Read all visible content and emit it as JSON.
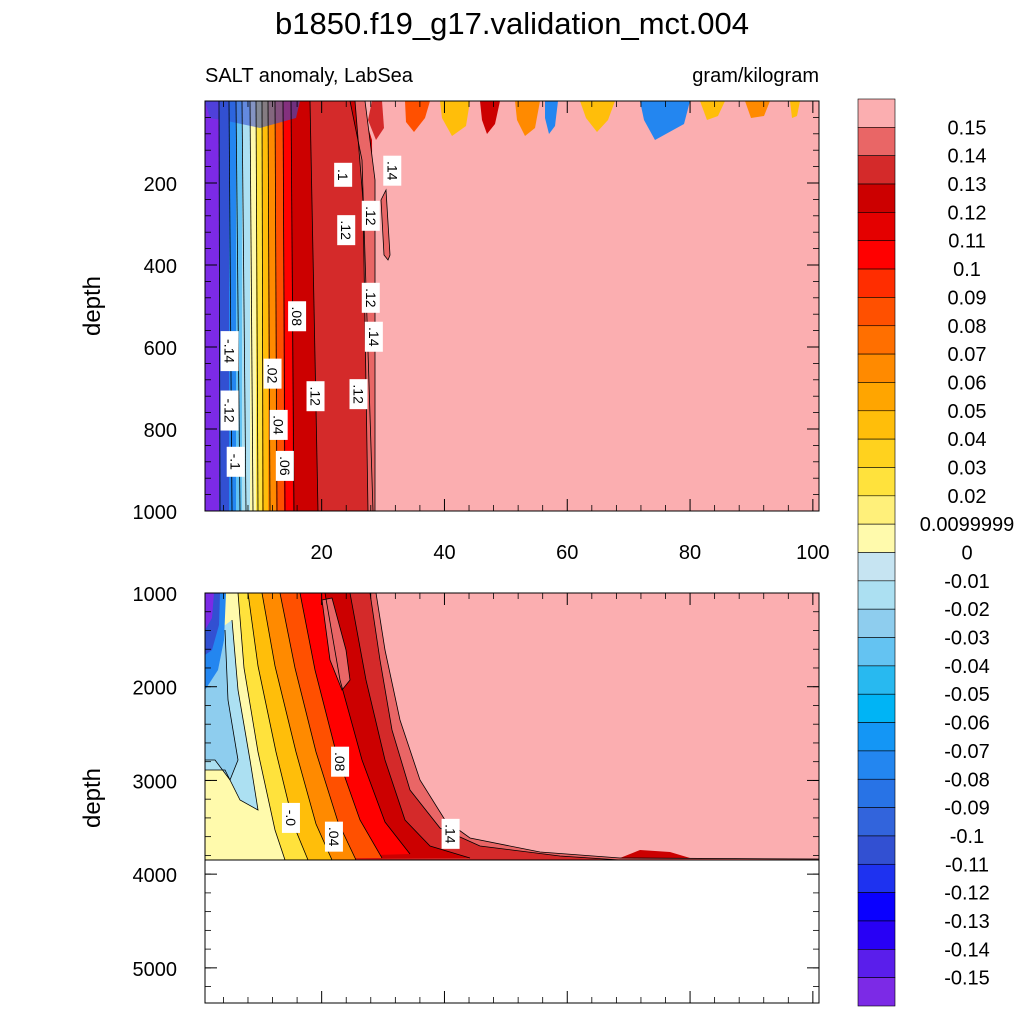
{
  "title": "b1850.f19_g17.validation_mct.004",
  "subtitle_left": "SALT anomaly, LabSea",
  "subtitle_right": "gram/kilogram",
  "chart_data": {
    "type": "contour",
    "variable": "SALT anomaly",
    "region": "LabSea",
    "units": "gram/kilogram",
    "panels": [
      {
        "name": "upper",
        "ylabel": "depth",
        "x_ticks": [
          "20",
          "40",
          "60",
          "80",
          "100"
        ],
        "y_ticks": [
          "200",
          "400",
          "600",
          "800",
          "1000"
        ],
        "xlim": [
          1,
          101
        ],
        "ylim": [
          0,
          1000
        ],
        "contour_labels": [
          {
            "text": "-.14",
            "x": 5,
            "y": 610
          },
          {
            "text": "-.12",
            "x": 5,
            "y": 755
          },
          {
            "text": "-.1",
            "x": 6,
            "y": 880
          },
          {
            "text": ".02",
            "x": 12,
            "y": 665
          },
          {
            "text": ".04",
            "x": 13,
            "y": 790
          },
          {
            "text": ".06",
            "x": 14,
            "y": 890
          },
          {
            "text": ".08",
            "x": 16,
            "y": 525
          },
          {
            "text": ".12",
            "x": 19,
            "y": 720
          },
          {
            "text": ".12",
            "x": 24,
            "y": 315
          },
          {
            "text": ".1",
            "x": 23.5,
            "y": 180
          },
          {
            "text": ".12",
            "x": 26,
            "y": 715
          },
          {
            "text": ".12",
            "x": 28,
            "y": 280
          },
          {
            "text": ".12",
            "x": 28,
            "y": 480
          },
          {
            "text": ".14",
            "x": 28.5,
            "y": 575
          },
          {
            "text": ".14",
            "x": 31.5,
            "y": 170
          }
        ]
      },
      {
        "name": "lower",
        "ylabel": "depth",
        "y_ticks": [
          "1000",
          "2000",
          "3000",
          "4000",
          "5000"
        ],
        "xlim": [
          1,
          101
        ],
        "ylim": [
          1000,
          5375
        ],
        "bottom_depth": 3900,
        "contour_labels": [
          {
            "text": ".08",
            "x": 23,
            "y": 2800
          },
          {
            "text": "-.0",
            "x": 15,
            "y": 3400
          },
          {
            "text": ".04",
            "x": 22,
            "y": 3600
          },
          {
            "text": ".14",
            "x": 41,
            "y": 3570
          }
        ]
      }
    ],
    "colorbar": {
      "labels": [
        "0.15",
        "0.14",
        "0.13",
        "0.12",
        "0.11",
        "0.1",
        "0.09",
        "0.08",
        "0.07",
        "0.06",
        "0.05",
        "0.04",
        "0.03",
        "0.02",
        "0.0099999",
        "0",
        "-0.01",
        "-0.02",
        "-0.03",
        "-0.04",
        "-0.05",
        "-0.06",
        "-0.07",
        "-0.08",
        "-0.09",
        "-0.1",
        "-0.11",
        "-0.12",
        "-0.13",
        "-0.14",
        "-0.15"
      ],
      "colors": [
        "#fbaeb0",
        "#e96666",
        "#d42a2a",
        "#cc0000",
        "#e40000",
        "#ff0000",
        "#ff2d00",
        "#ff5000",
        "#ff6f00",
        "#ff8a00",
        "#ffa500",
        "#ffbe0a",
        "#ffd21e",
        "#ffe23c",
        "#fff07a",
        "#fffaac",
        "#c6e4f2",
        "#ace0f2",
        "#8ecdee",
        "#64c3f2",
        "#28b9f0",
        "#00b4f5",
        "#1496f5",
        "#2386f0",
        "#2873e6",
        "#3264dc",
        "#3250d2",
        "#1e32f0",
        "#0a00ff",
        "#2800f5",
        "#5a1eeb",
        "#7c2ae6"
      ]
    }
  }
}
